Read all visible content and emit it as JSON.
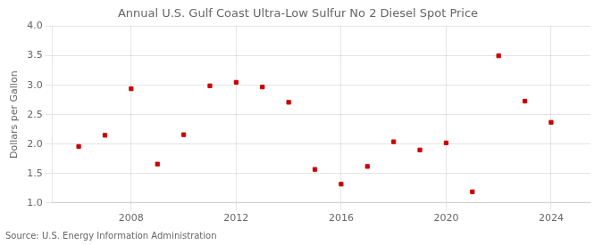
{
  "chart_data": {
    "type": "scatter",
    "title": "Annual U.S. Gulf Coast Ultra-Low Sulfur No 2 Diesel Spot Price",
    "ylabel": "Dollars per Gallon",
    "annotations": [
      "Source: U.S. Energy Information Administration"
    ],
    "x": [
      2006,
      2007,
      2008,
      2009,
      2010,
      2011,
      2012,
      2013,
      2014,
      2015,
      2016,
      2017,
      2018,
      2019,
      2020,
      2021,
      2022,
      2023,
      2024
    ],
    "values": [
      1.96,
      2.15,
      2.94,
      1.66,
      2.16,
      2.99,
      3.05,
      2.97,
      2.71,
      1.57,
      1.32,
      1.62,
      2.04,
      1.9,
      2.02,
      1.19,
      3.5,
      2.73,
      2.37
    ],
    "color": "#cc0000",
    "marker": "square",
    "xlim": [
      2005.0,
      2025.5
    ],
    "xticks": [
      2008,
      2012,
      2016,
      2020,
      2024
    ],
    "ylim": [
      1.0,
      4.0
    ],
    "yticks": [
      {
        "value": 1.0,
        "label": "1.0"
      },
      {
        "value": 1.5,
        "label": "1.5"
      },
      {
        "value": 2.0,
        "label": "2.0"
      },
      {
        "value": 2.5,
        "label": "2.5"
      },
      {
        "value": 3.0,
        "label": "3.0"
      },
      {
        "value": 3.5,
        "label": "3.5"
      },
      {
        "value": 4.0,
        "label": "4.0"
      }
    ],
    "grid": true
  }
}
